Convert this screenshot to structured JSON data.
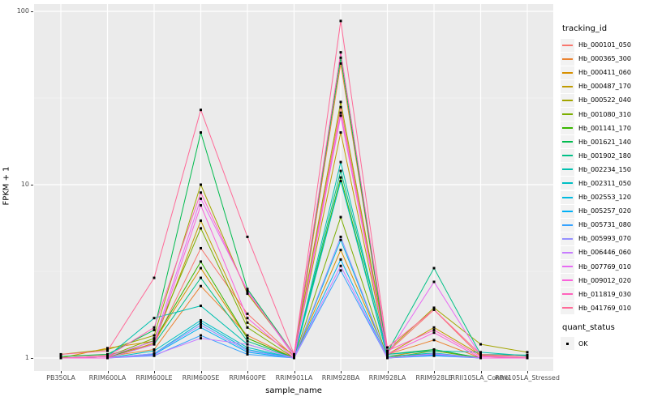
{
  "figure": {
    "background": "#FFFFFF",
    "panel_background": "#EBEBEB",
    "gridline_color": "#FFFFFF",
    "axis_text_color": "#4D4D4D",
    "axis_title_color": "#000000"
  },
  "axes": {
    "x_title": "sample_name",
    "y_title": "FPKM + 1"
  },
  "legend": {
    "tracking_title": "tracking_id",
    "quant_title": "quant_status",
    "quant_items": [
      {
        "label": "OK"
      }
    ]
  },
  "chart_data": {
    "type": "line",
    "title": "",
    "xlabel": "sample_name",
    "ylabel": "FPKM + 1",
    "yscale": "log10",
    "ylim": [
      1,
      100
    ],
    "yticks": [
      1,
      10,
      100
    ],
    "ytick_labels": [
      "1",
      "10",
      "100"
    ],
    "minor_gridlines": [
      3.1623,
      31.623
    ],
    "grid": true,
    "legend_position": "right",
    "legend_title": "tracking_id",
    "quant_status_legend": {
      "title": "quant_status",
      "items": [
        "OK"
      ]
    },
    "point_marker": {
      "shape": "square",
      "color": "#000000",
      "size": 3
    },
    "categories": [
      "PB350LA",
      "RRIM600LA",
      "RRIM600LE",
      "RRIM600SE",
      "RRIM600PE",
      "RRIM901LA",
      "RRIM928BA",
      "RRIM928LA",
      "RRIM928LE",
      "RRII105LA_Control",
      "RRII105LA_Stressed"
    ],
    "series": [
      {
        "name": "Hb_000101_050",
        "color": "#F8766D",
        "values": [
          1.02,
          1.04,
          1.2,
          4.3,
          1.8,
          1.02,
          28,
          1.08,
          1.9,
          1.02,
          1.0
        ]
      },
      {
        "name": "Hb_000365_300",
        "color": "#EA8331",
        "values": [
          1.0,
          1.02,
          1.12,
          2.6,
          1.35,
          1.0,
          50,
          1.05,
          1.27,
          1.0,
          1.0
        ]
      },
      {
        "name": "Hb_000411_060",
        "color": "#D89000",
        "values": [
          1.0,
          1.14,
          1.25,
          3.3,
          1.3,
          1.0,
          4.2,
          1.02,
          1.12,
          1.0,
          1.0
        ]
      },
      {
        "name": "Hb_000487_170",
        "color": "#C09B00",
        "values": [
          1.0,
          1.0,
          1.22,
          6.2,
          1.6,
          1.04,
          20,
          1.05,
          1.5,
          1.04,
          1.02
        ]
      },
      {
        "name": "Hb_000522_040",
        "color": "#A3A500",
        "values": [
          1.05,
          1.12,
          1.35,
          10.0,
          2.35,
          1.05,
          30,
          1.1,
          1.95,
          1.2,
          1.08
        ]
      },
      {
        "name": "Hb_001080_310",
        "color": "#7CAE00",
        "values": [
          1.0,
          1.02,
          1.3,
          5.6,
          1.5,
          1.0,
          6.5,
          1.0,
          1.1,
          1.0,
          1.0
        ]
      },
      {
        "name": "Hb_001141_170",
        "color": "#39B600",
        "values": [
          1.0,
          1.0,
          1.26,
          3.6,
          1.3,
          1.0,
          11.0,
          1.02,
          1.06,
          1.0,
          1.0
        ]
      },
      {
        "name": "Hb_001621_140",
        "color": "#00BB4E",
        "values": [
          1.02,
          1.05,
          1.45,
          20.0,
          2.5,
          1.05,
          54,
          1.05,
          1.12,
          1.0,
          1.0
        ]
      },
      {
        "name": "Hb_001902_180",
        "color": "#00C087",
        "values": [
          1.0,
          1.0,
          1.2,
          2.9,
          1.25,
          1.0,
          12.0,
          1.08,
          3.3,
          1.05,
          1.04
        ]
      },
      {
        "name": "Hb_002234_150",
        "color": "#00C0AF",
        "values": [
          1.0,
          1.02,
          1.7,
          2.0,
          1.2,
          1.0,
          13.5,
          1.05,
          1.1,
          1.08,
          1.03
        ]
      },
      {
        "name": "Hb_002311_050",
        "color": "#00BFC4",
        "values": [
          1.0,
          1.0,
          1.1,
          1.65,
          1.15,
          1.0,
          10.5,
          1.02,
          1.07,
          1.0,
          1.0
        ]
      },
      {
        "name": "Hb_002553_120",
        "color": "#00BAE0",
        "values": [
          1.0,
          1.0,
          1.06,
          1.6,
          1.12,
          1.0,
          4.8,
          1.0,
          1.05,
          1.0,
          1.0
        ]
      },
      {
        "name": "Hb_005257_020",
        "color": "#00B0F6",
        "values": [
          1.0,
          1.0,
          1.05,
          1.5,
          1.08,
          1.0,
          3.7,
          1.0,
          1.04,
          1.0,
          1.0
        ]
      },
      {
        "name": "Hb_005731_080",
        "color": "#35A2FF",
        "values": [
          1.0,
          1.0,
          1.03,
          1.35,
          1.05,
          1.0,
          3.2,
          1.0,
          1.03,
          1.0,
          1.0
        ]
      },
      {
        "name": "Hb_005993_070",
        "color": "#9590FF",
        "values": [
          1.0,
          1.0,
          1.06,
          1.55,
          1.1,
          1.0,
          5.0,
          1.0,
          1.05,
          1.0,
          1.0
        ]
      },
      {
        "name": "Hb_006446_060",
        "color": "#C77CFF",
        "values": [
          1.0,
          1.0,
          1.04,
          1.3,
          1.2,
          1.0,
          3.4,
          1.0,
          1.06,
          1.0,
          1.0
        ]
      },
      {
        "name": "Hb_007769_010",
        "color": "#E76BF3",
        "values": [
          1.0,
          1.02,
          1.25,
          8.3,
          2.45,
          1.02,
          26,
          1.05,
          2.75,
          1.03,
          1.0
        ]
      },
      {
        "name": "Hb_009012_020",
        "color": "#FA62DB",
        "values": [
          1.0,
          1.0,
          1.2,
          7.6,
          1.7,
          1.0,
          25,
          1.05,
          1.4,
          1.0,
          1.0
        ]
      },
      {
        "name": "Hb_011819_030",
        "color": "#FF62BC",
        "values": [
          1.0,
          1.02,
          1.5,
          9.0,
          2.4,
          1.05,
          58,
          1.1,
          1.45,
          1.02,
          1.0
        ]
      },
      {
        "name": "Hb_041769_010",
        "color": "#FF6A98",
        "values": [
          1.05,
          1.1,
          2.9,
          27.0,
          5.0,
          1.05,
          88,
          1.15,
          1.9,
          1.05,
          1.02
        ]
      }
    ]
  }
}
